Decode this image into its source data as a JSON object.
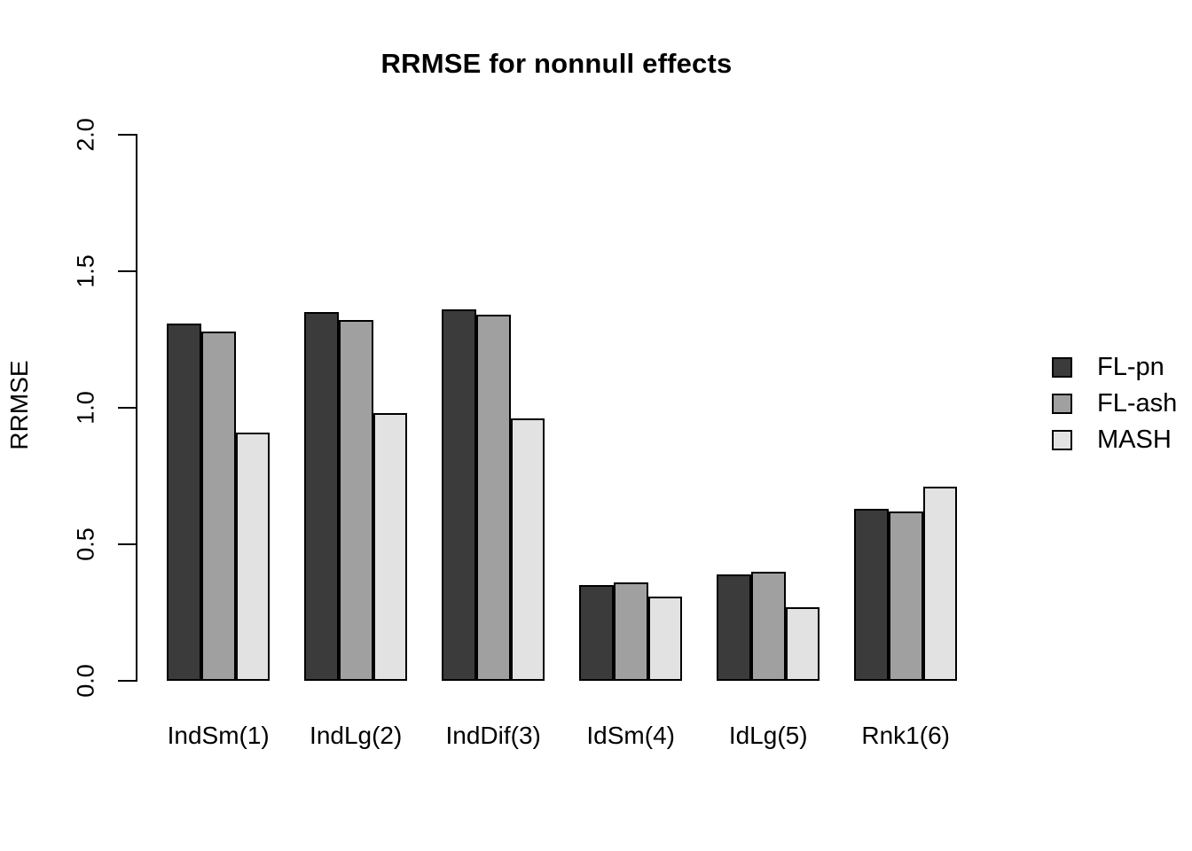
{
  "chart_data": {
    "type": "bar",
    "title": "RRMSE for nonnull effects",
    "xlabel": "",
    "ylabel": "RRMSE",
    "categories": [
      "IndSm(1)",
      "IndLg(2)",
      "IndDif(3)",
      "IdSm(4)",
      "IdLg(5)",
      "Rnk1(6)"
    ],
    "series": [
      {
        "name": "FL-pn",
        "color": "#3b3b3b",
        "values": [
          1.31,
          1.35,
          1.36,
          0.35,
          0.39,
          0.63
        ]
      },
      {
        "name": "FL-ash",
        "color": "#a0a0a0",
        "values": [
          1.28,
          1.32,
          1.34,
          0.36,
          0.4,
          0.62
        ]
      },
      {
        "name": "MASH",
        "color": "#e2e2e2",
        "values": [
          0.91,
          0.98,
          0.96,
          0.31,
          0.27,
          0.71
        ]
      }
    ],
    "ylim": [
      0,
      2.0
    ],
    "yticks": [
      0.0,
      0.5,
      1.0,
      1.5,
      2.0
    ],
    "ytick_labels": [
      "0.0",
      "0.5",
      "1.0",
      "1.5",
      "2.0"
    ],
    "legend": {
      "position": "right",
      "entries": [
        "FL-pn",
        "FL-ash",
        "MASH"
      ]
    },
    "grid": false,
    "bar_border_color": "#000000",
    "axis_color": "#000000",
    "background": "#ffffff"
  }
}
